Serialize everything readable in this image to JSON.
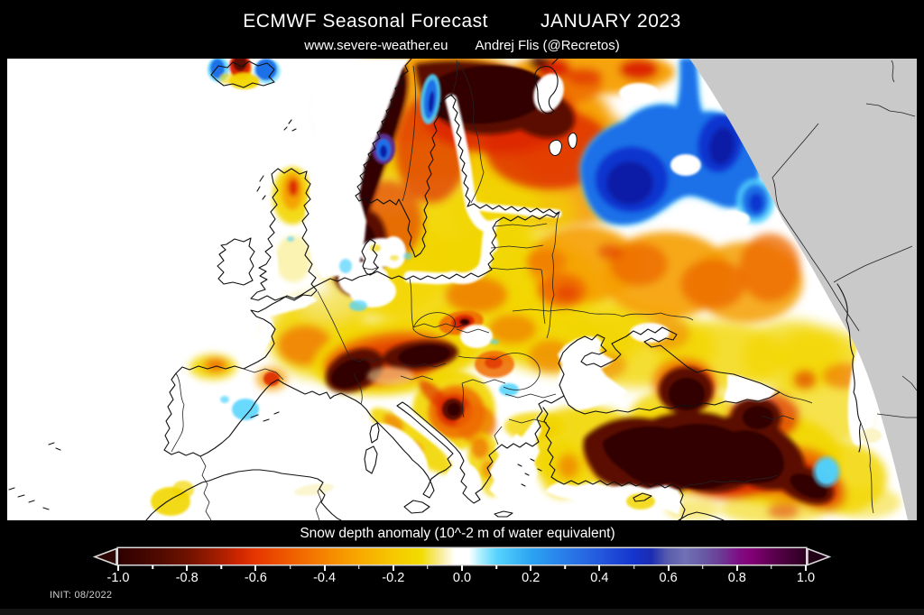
{
  "header": {
    "title_left": "ECMWF Seasonal Forecast",
    "title_right": "JANUARY 2023",
    "subtitle_site": "www.severe-weather.eu",
    "subtitle_author": "Andrej Flis (@Recretos)"
  },
  "colorbar": {
    "label": "Snow depth anomaly (10^-2 m of water equivalent)",
    "tick_labels": [
      "-1.0",
      "-0.8",
      "-0.6",
      "-0.4",
      "-0.2",
      "0.0",
      "0.2",
      "0.4",
      "0.6",
      "0.8",
      "1.0"
    ],
    "min": -1.0,
    "max": 1.0,
    "minor_step": 0.1,
    "stops": [
      {
        "p": 0,
        "c": "#2e0000"
      },
      {
        "p": 5,
        "c": "#4a0800"
      },
      {
        "p": 10,
        "c": "#6f1200"
      },
      {
        "p": 14,
        "c": "#9c1c00"
      },
      {
        "p": 17.5,
        "c": "#cf2600"
      },
      {
        "p": 20,
        "c": "#e63600"
      },
      {
        "p": 25,
        "c": "#f05c00"
      },
      {
        "p": 30,
        "c": "#f58400"
      },
      {
        "p": 35,
        "c": "#f8a800"
      },
      {
        "p": 40,
        "c": "#f6c800"
      },
      {
        "p": 44,
        "c": "#f2dc00"
      },
      {
        "p": 47,
        "c": "#f8eda0"
      },
      {
        "p": 49,
        "c": "#ffffff"
      },
      {
        "p": 51,
        "c": "#ffffff"
      },
      {
        "p": 52.5,
        "c": "#b4f0ff"
      },
      {
        "p": 55,
        "c": "#58d4fd"
      },
      {
        "p": 60,
        "c": "#2ba4f2"
      },
      {
        "p": 65,
        "c": "#2a7cea"
      },
      {
        "p": 70,
        "c": "#2458dd"
      },
      {
        "p": 75,
        "c": "#1534cd"
      },
      {
        "p": 77.5,
        "c": "#1c2cb2"
      },
      {
        "p": 80,
        "c": "#5a5dad"
      },
      {
        "p": 82.5,
        "c": "#7070b4"
      },
      {
        "p": 85,
        "c": "#685ba6"
      },
      {
        "p": 87.5,
        "c": "#6c3d96"
      },
      {
        "p": 90,
        "c": "#7e1186"
      },
      {
        "p": 92,
        "c": "#830076"
      },
      {
        "p": 95,
        "c": "#5e0052"
      },
      {
        "p": 100,
        "c": "#2b001e"
      }
    ],
    "left_arrow_fill": "#2d0502",
    "right_arrow_fill": "#1f0016",
    "arrow_border": "#d9d9d9"
  },
  "footer": {
    "init_label": "INIT: 08/2022"
  },
  "palette": {
    "mapbg": "#ffffff",
    "nodata": "#c9c9c9",
    "coast": "#111111",
    "border": "#222222",
    "maroon": "#5a0800",
    "darkmaroon": "#330200",
    "red": "#dd2800",
    "deeporange": "#ee6a00",
    "orange": "#f59e00",
    "yellow": "#f2d600",
    "paleyellow": "#f8efb0",
    "cyan": "#4fd2fe",
    "blue": "#1e6fe8",
    "darkblue": "#0e35cf",
    "navy": "#0a1ba6",
    "purple": "#5c2f8e",
    "seawhite": "#ffffff"
  },
  "chart_data": {
    "type": "heatmap",
    "title": "ECMWF Seasonal Forecast — Snow depth anomaly, January 2023",
    "units": "10^-2 m of water equivalent",
    "scale_range": [
      -1.0,
      1.0
    ],
    "scale_ticks": [
      -1.0,
      -0.8,
      -0.6,
      -0.4,
      -0.2,
      0.0,
      0.2,
      0.4,
      0.6,
      0.8,
      1.0
    ],
    "legend_position": "bottom",
    "no_data_region": "northeast corner (outside projection domain, gray)",
    "regions": [
      {
        "area": "Norway / Scandinavian mountains",
        "anomaly": -1.0
      },
      {
        "area": "Northern Sweden / Finland",
        "anomaly": -0.9
      },
      {
        "area": "Coastal western Norway (Bergen)",
        "anomaly": 0.5
      },
      {
        "area": "Northwest Russia (large patch)",
        "anomaly": 0.4
      },
      {
        "area": "Iceland",
        "anomaly": 0.2
      },
      {
        "area": "Scotland",
        "anomaly": -0.5
      },
      {
        "area": "Central Europe / Germany / Poland",
        "anomaly": -0.3
      },
      {
        "area": "Alps",
        "anomaly": -1.0
      },
      {
        "area": "Carpathians (Slovakia)",
        "anomaly": -0.7
      },
      {
        "area": "Dinaric Alps / Montenegro",
        "anomaly": -0.8
      },
      {
        "area": "Eastern Turkey / Caucasus",
        "anomaly": -1.0
      },
      {
        "area": "Ukraine / Southern Russia",
        "anomaly": -0.4
      },
      {
        "area": "Northeast Spain (local spot)",
        "anomaly": 0.15
      },
      {
        "area": "Romania lowlands (local spot)",
        "anomaly": 0.1
      },
      {
        "area": "Iberia / Mediterranean lowlands",
        "anomaly": 0.0
      }
    ]
  }
}
